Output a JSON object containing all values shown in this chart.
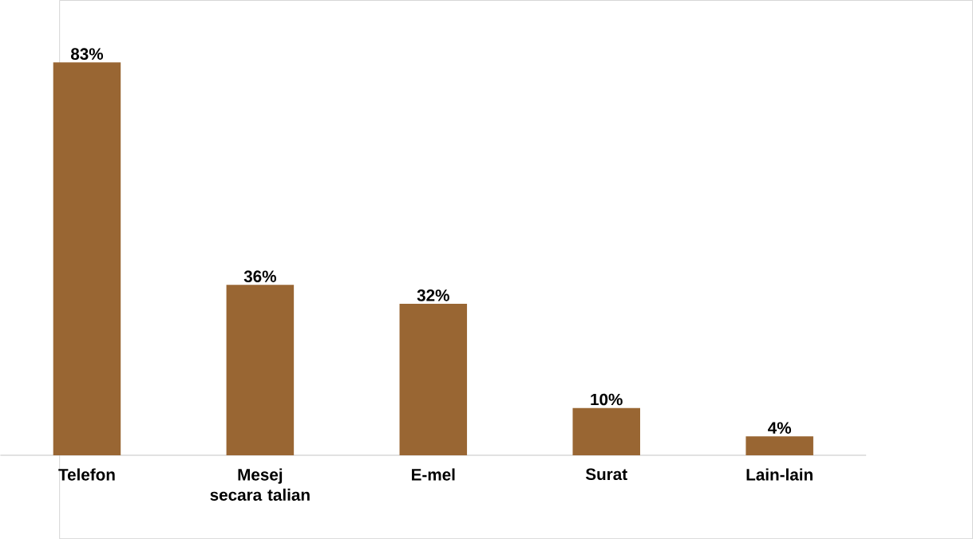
{
  "chart_data": {
    "type": "bar",
    "categories": [
      "Telefon",
      "Mesej secara talian",
      "E-mel",
      "Surat",
      "Lain-lain"
    ],
    "values": [
      83,
      36,
      32,
      10,
      4
    ],
    "value_labels": [
      "83%",
      "36%",
      "32%",
      "10%",
      "4%"
    ],
    "color": "#996633"
  }
}
